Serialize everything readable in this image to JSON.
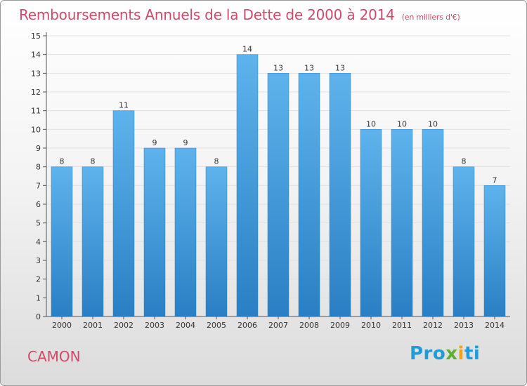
{
  "title": "Remboursements Annuels de la Dette de 2000 à 2014",
  "subtitle": "(en milliers d'€)",
  "commune": "CAMON",
  "logo": {
    "part1": "Pro",
    "part2": "x",
    "part3": "i",
    "part4": "ti"
  },
  "chart_data": {
    "type": "bar",
    "title": "Remboursements Annuels de la Dette de 2000 à 2014",
    "subtitle": "(en milliers d'€)",
    "categories": [
      "2000",
      "2001",
      "2002",
      "2003",
      "2004",
      "2005",
      "2006",
      "2007",
      "2008",
      "2009",
      "2010",
      "2011",
      "2012",
      "2013",
      "2014"
    ],
    "values": [
      8,
      8,
      11,
      9,
      9,
      8,
      14,
      13,
      13,
      13,
      10,
      10,
      10,
      8,
      7
    ],
    "ylim": [
      0,
      15
    ],
    "yticks": [
      0,
      1,
      2,
      3,
      4,
      5,
      6,
      7,
      8,
      9,
      10,
      11,
      12,
      13,
      14,
      15
    ],
    "grid": true,
    "bar_color": "#3d97dc"
  }
}
